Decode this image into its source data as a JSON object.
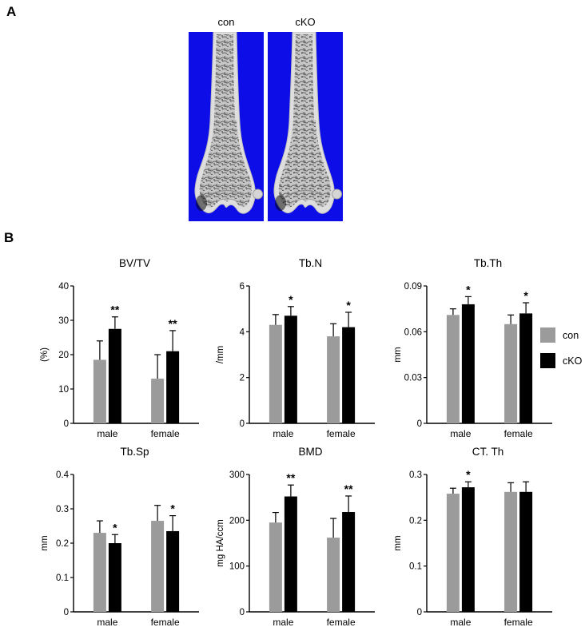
{
  "figure": {
    "panel_a": {
      "label": "A",
      "background_color": "#0d0de8",
      "images": [
        {
          "label": "con"
        },
        {
          "label": "cKO"
        }
      ]
    },
    "panel_b": {
      "label": "B"
    },
    "legend": {
      "items": [
        {
          "label": "con",
          "color": "#9b9b9b"
        },
        {
          "label": "cKO",
          "color": "#000000"
        }
      ]
    }
  },
  "chart_data": [
    {
      "type": "bar",
      "title": "BV/TV",
      "ylabel": "(%)",
      "ylim": [
        0,
        40
      ],
      "yticks": [
        0,
        10,
        20,
        30,
        40
      ],
      "ytick_labels": [
        "0",
        "10",
        "20",
        "30",
        "40"
      ],
      "categories": [
        "male",
        "female"
      ],
      "series": [
        {
          "name": "con",
          "color": "#9b9b9b",
          "values": [
            18.5,
            13.0
          ],
          "errors": [
            5.5,
            7.0
          ]
        },
        {
          "name": "cKO",
          "color": "#000000",
          "values": [
            27.5,
            21.0
          ],
          "errors": [
            3.5,
            6.0
          ]
        }
      ],
      "sig": [
        "**",
        "**"
      ]
    },
    {
      "type": "bar",
      "title": "Tb.N",
      "ylabel": "/mm",
      "ylim": [
        0,
        6
      ],
      "yticks": [
        0,
        2,
        4,
        6
      ],
      "ytick_labels": [
        "0",
        "2",
        "4",
        "6"
      ],
      "categories": [
        "male",
        "female"
      ],
      "series": [
        {
          "name": "con",
          "color": "#9b9b9b",
          "values": [
            4.3,
            3.8
          ],
          "errors": [
            0.45,
            0.55
          ]
        },
        {
          "name": "cKO",
          "color": "#000000",
          "values": [
            4.7,
            4.2
          ],
          "errors": [
            0.4,
            0.65
          ]
        }
      ],
      "sig": [
        "*",
        "*"
      ]
    },
    {
      "type": "bar",
      "title": "Tb.Th",
      "ylabel": "mm",
      "ylim": [
        0,
        0.09
      ],
      "yticks": [
        0,
        0.03,
        0.06,
        0.09
      ],
      "ytick_labels": [
        "0",
        "0.03",
        "0.06",
        "0.09"
      ],
      "categories": [
        "male",
        "female"
      ],
      "series": [
        {
          "name": "con",
          "color": "#9b9b9b",
          "values": [
            0.071,
            0.065
          ],
          "errors": [
            0.004,
            0.006
          ]
        },
        {
          "name": "cKO",
          "color": "#000000",
          "values": [
            0.078,
            0.072
          ],
          "errors": [
            0.005,
            0.007
          ]
        }
      ],
      "sig": [
        "*",
        "*"
      ]
    },
    {
      "type": "bar",
      "title": "Tb.Sp",
      "ylabel": "mm",
      "ylim": [
        0,
        0.4
      ],
      "yticks": [
        0,
        0.1,
        0.2,
        0.3,
        0.4
      ],
      "ytick_labels": [
        "0",
        "0.1",
        "0.2",
        "0.3",
        "0.4"
      ],
      "categories": [
        "male",
        "female"
      ],
      "series": [
        {
          "name": "con",
          "color": "#9b9b9b",
          "values": [
            0.23,
            0.265
          ],
          "errors": [
            0.035,
            0.045
          ]
        },
        {
          "name": "cKO",
          "color": "#000000",
          "values": [
            0.2,
            0.235
          ],
          "errors": [
            0.025,
            0.045
          ]
        }
      ],
      "sig": [
        "*",
        "*"
      ]
    },
    {
      "type": "bar",
      "title": "BMD",
      "ylabel": "mg HA/ccm",
      "ylim": [
        0,
        300
      ],
      "yticks": [
        0,
        100,
        200,
        300
      ],
      "ytick_labels": [
        "0",
        "100",
        "200",
        "300"
      ],
      "categories": [
        "male",
        "female"
      ],
      "series": [
        {
          "name": "con",
          "color": "#9b9b9b",
          "values": [
            195,
            162
          ],
          "errors": [
            22,
            42
          ]
        },
        {
          "name": "cKO",
          "color": "#000000",
          "values": [
            252,
            218
          ],
          "errors": [
            25,
            35
          ]
        }
      ],
      "sig": [
        "**",
        "**"
      ]
    },
    {
      "type": "bar",
      "title": "CT. Th",
      "ylabel": "mm",
      "ylim": [
        0,
        0.3
      ],
      "yticks": [
        0,
        0.1,
        0.2,
        0.3
      ],
      "ytick_labels": [
        "0",
        "0.1",
        "0.2",
        "0.3"
      ],
      "categories": [
        "male",
        "female"
      ],
      "series": [
        {
          "name": "con",
          "color": "#9b9b9b",
          "values": [
            0.258,
            0.262
          ],
          "errors": [
            0.012,
            0.02
          ]
        },
        {
          "name": "cKO",
          "color": "#000000",
          "values": [
            0.272,
            0.262
          ],
          "errors": [
            0.012,
            0.022
          ]
        }
      ],
      "sig": [
        "*",
        ""
      ]
    }
  ]
}
